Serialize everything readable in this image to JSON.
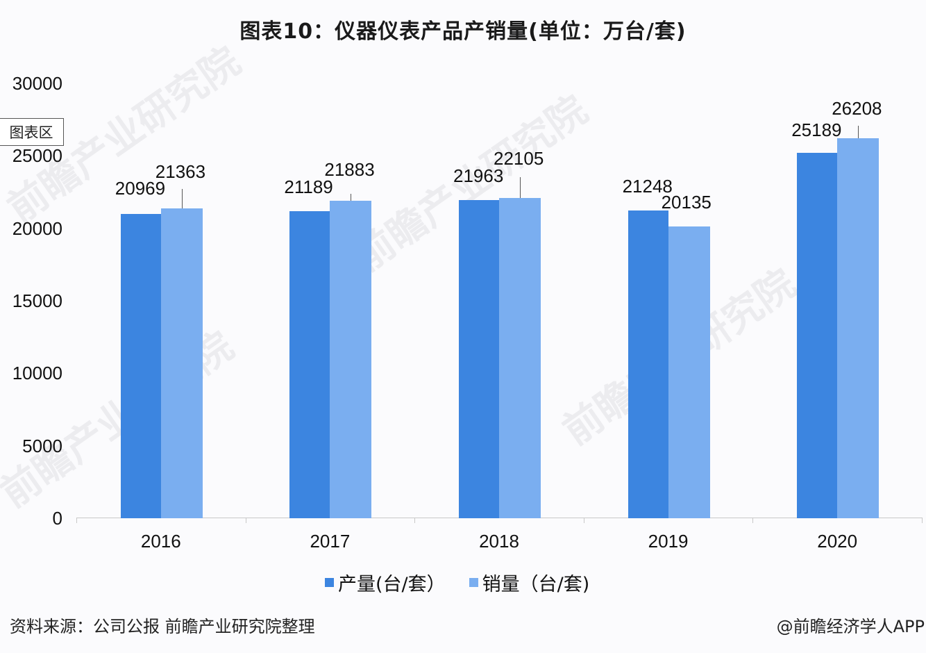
{
  "title": "图表10：仪器仪表产品产销量(单位：万台/套)",
  "chart_area_tag": "图表区",
  "legend": [
    {
      "label": "产量(台/套）",
      "color": "#3c85e0"
    },
    {
      "label": "销量（台/套)",
      "color": "#7aaef0"
    }
  ],
  "source": "资料来源：公司公报 前瞻产业研究院整理",
  "credit": "@前瞻经济学人APP",
  "watermark": "前瞻产业研究院",
  "y_ticks": [
    "30000",
    "25000",
    "20000",
    "15000",
    "10000",
    "5000",
    "0"
  ],
  "labels": {
    "prod": [
      "20969",
      "21189",
      "21963",
      "21248",
      "25189"
    ],
    "sales": [
      "21363",
      "21883",
      "22105",
      "20135",
      "26208"
    ]
  },
  "chart_data": {
    "type": "bar",
    "title": "图表10：仪器仪表产品产销量(单位：万台/套)",
    "xlabel": "",
    "ylabel": "万台/套",
    "categories": [
      "2016",
      "2017",
      "2018",
      "2019",
      "2020"
    ],
    "series": [
      {
        "name": "产量(台/套）",
        "color": "#3c85e0",
        "values": [
          20969,
          21189,
          21963,
          21248,
          25189
        ]
      },
      {
        "name": "销量（台/套)",
        "color": "#7aaef0",
        "values": [
          21363,
          21883,
          22105,
          20135,
          26208
        ]
      }
    ],
    "ylim": [
      0,
      30000
    ],
    "yticks": [
      0,
      5000,
      10000,
      15000,
      20000,
      25000,
      30000
    ],
    "grid": false,
    "legend_position": "bottom",
    "data_labels": true
  }
}
